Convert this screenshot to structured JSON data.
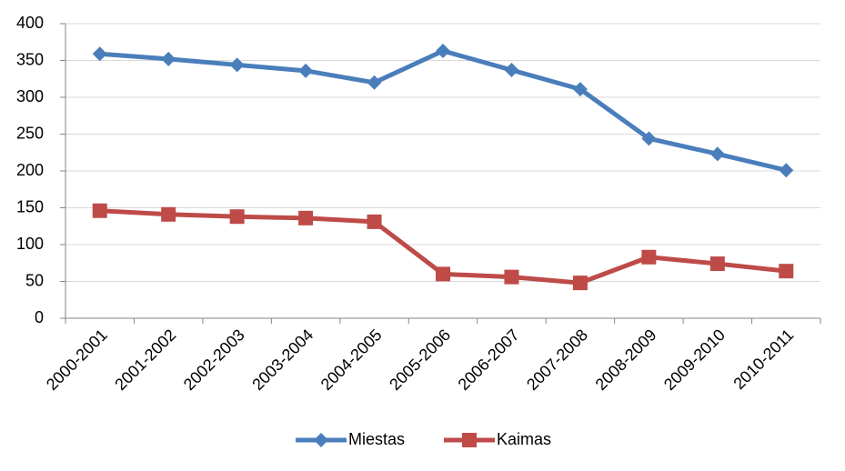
{
  "chart_data": {
    "type": "line",
    "categories": [
      "2000-2001",
      "2001-2002",
      "2002-2003",
      "2003-2004",
      "2004-2005",
      "2005-2006",
      "2006-2007",
      "2007-2008",
      "2008-2009",
      "2009-2010",
      "2010-2011"
    ],
    "series": [
      {
        "name": "Miestas",
        "color": "#4a7ebb",
        "marker": "diamond",
        "values": [
          359,
          352,
          344,
          336,
          320,
          363,
          337,
          311,
          244,
          223,
          201
        ]
      },
      {
        "name": "Kaimas",
        "color": "#be4b48",
        "marker": "square",
        "values": [
          146,
          141,
          138,
          136,
          131,
          60,
          56,
          48,
          83,
          74,
          64
        ]
      }
    ],
    "ylim": [
      0,
      400
    ],
    "yticks": [
      0,
      50,
      100,
      150,
      200,
      250,
      300,
      350,
      400
    ],
    "grid": true,
    "legend": "bottom"
  }
}
